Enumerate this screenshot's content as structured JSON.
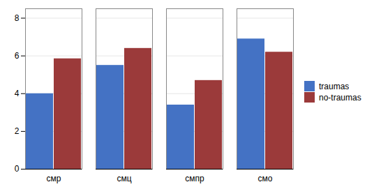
{
  "chart_data": {
    "type": "bar",
    "categories": [
      "смр",
      "смц",
      "смпр",
      "смо"
    ],
    "series": [
      {
        "name": "traumas",
        "color": "#4472C4",
        "values": [
          4.0,
          5.5,
          3.4,
          6.9
        ]
      },
      {
        "name": "no-traumas",
        "color": "#9B3A3A",
        "values": [
          5.85,
          6.4,
          4.7,
          6.2
        ]
      }
    ],
    "ylim": [
      0,
      8.5
    ],
    "yticks": [
      0,
      2,
      4,
      6,
      8
    ],
    "grid": true,
    "legend": "right"
  }
}
